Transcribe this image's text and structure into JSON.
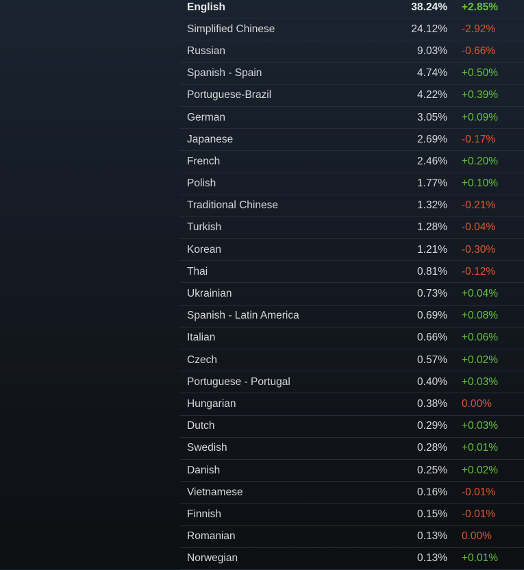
{
  "colors": {
    "positive": "#66c23c",
    "negative": "#e0562f"
  },
  "languages": [
    {
      "name": "English",
      "share": "38.24%",
      "change": "+2.85%",
      "dir": "up"
    },
    {
      "name": "Simplified Chinese",
      "share": "24.12%",
      "change": "-2.92%",
      "dir": "down"
    },
    {
      "name": "Russian",
      "share": "9.03%",
      "change": "-0.66%",
      "dir": "down"
    },
    {
      "name": "Spanish - Spain",
      "share": "4.74%",
      "change": "+0.50%",
      "dir": "up"
    },
    {
      "name": "Portuguese-Brazil",
      "share": "4.22%",
      "change": "+0.39%",
      "dir": "up"
    },
    {
      "name": "German",
      "share": "3.05%",
      "change": "+0.09%",
      "dir": "up"
    },
    {
      "name": "Japanese",
      "share": "2.69%",
      "change": "-0.17%",
      "dir": "down"
    },
    {
      "name": "French",
      "share": "2.46%",
      "change": "+0.20%",
      "dir": "up"
    },
    {
      "name": "Polish",
      "share": "1.77%",
      "change": "+0.10%",
      "dir": "up"
    },
    {
      "name": "Traditional Chinese",
      "share": "1.32%",
      "change": "-0.21%",
      "dir": "down"
    },
    {
      "name": "Turkish",
      "share": "1.28%",
      "change": "-0.04%",
      "dir": "down"
    },
    {
      "name": "Korean",
      "share": "1.21%",
      "change": "-0.30%",
      "dir": "down"
    },
    {
      "name": "Thai",
      "share": "0.81%",
      "change": "-0.12%",
      "dir": "down"
    },
    {
      "name": "Ukrainian",
      "share": "0.73%",
      "change": "+0.04%",
      "dir": "up"
    },
    {
      "name": "Spanish - Latin America",
      "share": "0.69%",
      "change": "+0.08%",
      "dir": "up"
    },
    {
      "name": "Italian",
      "share": "0.66%",
      "change": "+0.06%",
      "dir": "up"
    },
    {
      "name": "Czech",
      "share": "0.57%",
      "change": "+0.02%",
      "dir": "up"
    },
    {
      "name": "Portuguese - Portugal",
      "share": "0.40%",
      "change": "+0.03%",
      "dir": "up"
    },
    {
      "name": "Hungarian",
      "share": "0.38%",
      "change": "0.00%",
      "dir": "down"
    },
    {
      "name": "Dutch",
      "share": "0.29%",
      "change": "+0.03%",
      "dir": "up"
    },
    {
      "name": "Swedish",
      "share": "0.28%",
      "change": "+0.01%",
      "dir": "up"
    },
    {
      "name": "Danish",
      "share": "0.25%",
      "change": "+0.02%",
      "dir": "up"
    },
    {
      "name": "Vietnamese",
      "share": "0.16%",
      "change": "-0.01%",
      "dir": "down"
    },
    {
      "name": "Finnish",
      "share": "0.15%",
      "change": "-0.01%",
      "dir": "down"
    },
    {
      "name": "Romanian",
      "share": "0.13%",
      "change": "0.00%",
      "dir": "down"
    },
    {
      "name": "Norwegian",
      "share": "0.13%",
      "change": "+0.01%",
      "dir": "up"
    }
  ]
}
